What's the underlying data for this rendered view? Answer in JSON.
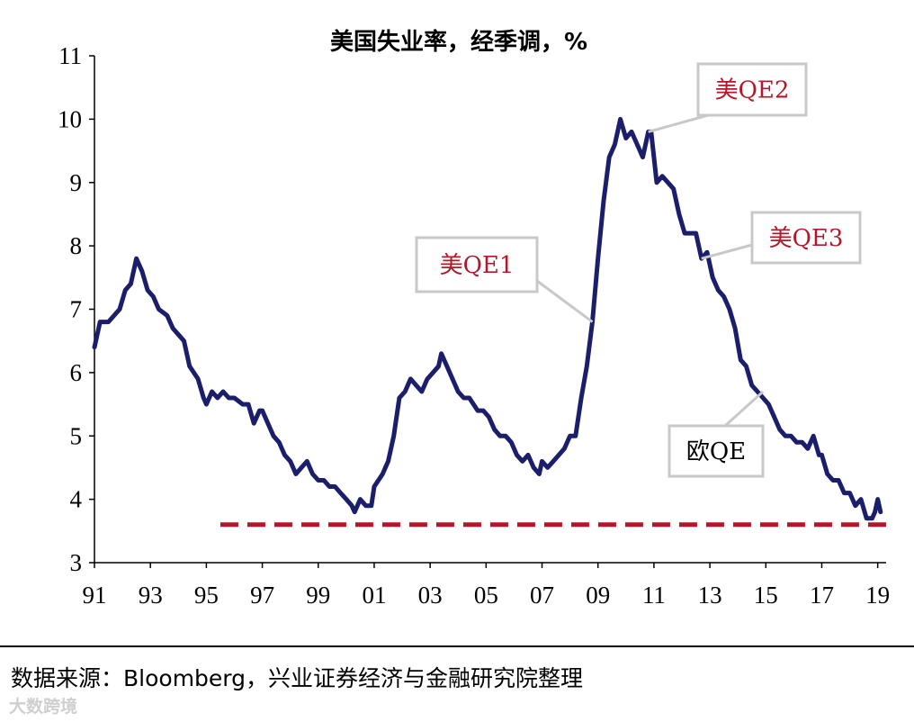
{
  "chart_data": {
    "type": "line",
    "title": "美国失业率，经季调，%",
    "xlabel": "",
    "ylabel": "",
    "xlim": [
      1991.0,
      2019.3
    ],
    "ylim": [
      3,
      11
    ],
    "y_ticks": [
      "3",
      "4",
      "5",
      "6",
      "7",
      "8",
      "9",
      "10",
      "11"
    ],
    "x_ticks": [
      {
        "label": "91",
        "value": 1991
      },
      {
        "label": "93",
        "value": 1993
      },
      {
        "label": "95",
        "value": 1995
      },
      {
        "label": "97",
        "value": 1997
      },
      {
        "label": "99",
        "value": 1999
      },
      {
        "label": "01",
        "value": 2001
      },
      {
        "label": "03",
        "value": 2003
      },
      {
        "label": "05",
        "value": 2005
      },
      {
        "label": "07",
        "value": 2007
      },
      {
        "label": "09",
        "value": 2009
      },
      {
        "label": "11",
        "value": 2011
      },
      {
        "label": "13",
        "value": 2013
      },
      {
        "label": "15",
        "value": 2015
      },
      {
        "label": "17",
        "value": 2017
      },
      {
        "label": "19",
        "value": 2019
      }
    ],
    "series": [
      {
        "color": "#1b1f6b",
        "points": [
          [
            1991.0,
            6.4
          ],
          [
            1991.2,
            6.8
          ],
          [
            1991.5,
            6.8
          ],
          [
            1991.7,
            6.9
          ],
          [
            1991.9,
            7.0
          ],
          [
            1992.1,
            7.3
          ],
          [
            1992.3,
            7.4
          ],
          [
            1992.5,
            7.8
          ],
          [
            1992.7,
            7.6
          ],
          [
            1992.9,
            7.3
          ],
          [
            1993.1,
            7.2
          ],
          [
            1993.3,
            7.0
          ],
          [
            1993.6,
            6.9
          ],
          [
            1993.8,
            6.7
          ],
          [
            1994.0,
            6.6
          ],
          [
            1994.2,
            6.5
          ],
          [
            1994.4,
            6.1
          ],
          [
            1994.7,
            5.9
          ],
          [
            1994.9,
            5.6
          ],
          [
            1995.0,
            5.5
          ],
          [
            1995.2,
            5.7
          ],
          [
            1995.4,
            5.6
          ],
          [
            1995.6,
            5.7
          ],
          [
            1995.8,
            5.6
          ],
          [
            1996.0,
            5.6
          ],
          [
            1996.3,
            5.5
          ],
          [
            1996.5,
            5.5
          ],
          [
            1996.7,
            5.2
          ],
          [
            1996.9,
            5.4
          ],
          [
            1997.0,
            5.4
          ],
          [
            1997.2,
            5.2
          ],
          [
            1997.4,
            5.0
          ],
          [
            1997.6,
            4.9
          ],
          [
            1997.8,
            4.7
          ],
          [
            1998.0,
            4.6
          ],
          [
            1998.2,
            4.4
          ],
          [
            1998.4,
            4.5
          ],
          [
            1998.6,
            4.6
          ],
          [
            1998.8,
            4.4
          ],
          [
            1999.0,
            4.3
          ],
          [
            1999.2,
            4.3
          ],
          [
            1999.4,
            4.2
          ],
          [
            1999.6,
            4.2
          ],
          [
            1999.8,
            4.1
          ],
          [
            2000.0,
            4.0
          ],
          [
            2000.2,
            3.9
          ],
          [
            2000.3,
            3.8
          ],
          [
            2000.5,
            4.0
          ],
          [
            2000.7,
            3.9
          ],
          [
            2000.9,
            3.9
          ],
          [
            2001.0,
            4.2
          ],
          [
            2001.3,
            4.4
          ],
          [
            2001.5,
            4.6
          ],
          [
            2001.7,
            5.0
          ],
          [
            2001.9,
            5.6
          ],
          [
            2002.1,
            5.7
          ],
          [
            2002.3,
            5.9
          ],
          [
            2002.5,
            5.8
          ],
          [
            2002.7,
            5.7
          ],
          [
            2002.9,
            5.9
          ],
          [
            2003.1,
            6.0
          ],
          [
            2003.3,
            6.1
          ],
          [
            2003.4,
            6.3
          ],
          [
            2003.6,
            6.1
          ],
          [
            2003.8,
            5.9
          ],
          [
            2004.0,
            5.7
          ],
          [
            2004.2,
            5.6
          ],
          [
            2004.4,
            5.6
          ],
          [
            2004.7,
            5.4
          ],
          [
            2004.9,
            5.4
          ],
          [
            2005.1,
            5.3
          ],
          [
            2005.3,
            5.1
          ],
          [
            2005.5,
            5.0
          ],
          [
            2005.7,
            5.0
          ],
          [
            2005.9,
            4.9
          ],
          [
            2006.1,
            4.7
          ],
          [
            2006.3,
            4.6
          ],
          [
            2006.5,
            4.7
          ],
          [
            2006.7,
            4.5
          ],
          [
            2006.9,
            4.4
          ],
          [
            2007.0,
            4.6
          ],
          [
            2007.2,
            4.5
          ],
          [
            2007.4,
            4.6
          ],
          [
            2007.6,
            4.7
          ],
          [
            2007.8,
            4.8
          ],
          [
            2008.0,
            5.0
          ],
          [
            2008.2,
            5.0
          ],
          [
            2008.4,
            5.6
          ],
          [
            2008.6,
            6.1
          ],
          [
            2008.8,
            6.8
          ],
          [
            2009.0,
            7.8
          ],
          [
            2009.2,
            8.7
          ],
          [
            2009.4,
            9.4
          ],
          [
            2009.6,
            9.6
          ],
          [
            2009.8,
            10.0
          ],
          [
            2010.0,
            9.7
          ],
          [
            2010.2,
            9.8
          ],
          [
            2010.4,
            9.6
          ],
          [
            2010.6,
            9.4
          ],
          [
            2010.8,
            9.8
          ],
          [
            2010.9,
            9.8
          ],
          [
            2011.1,
            9.0
          ],
          [
            2011.3,
            9.1
          ],
          [
            2011.5,
            9.0
          ],
          [
            2011.7,
            8.9
          ],
          [
            2011.9,
            8.5
          ],
          [
            2012.1,
            8.2
          ],
          [
            2012.3,
            8.2
          ],
          [
            2012.5,
            8.2
          ],
          [
            2012.7,
            7.8
          ],
          [
            2012.9,
            7.9
          ],
          [
            2013.1,
            7.5
          ],
          [
            2013.3,
            7.3
          ],
          [
            2013.5,
            7.2
          ],
          [
            2013.7,
            7.0
          ],
          [
            2013.9,
            6.7
          ],
          [
            2014.1,
            6.2
          ],
          [
            2014.3,
            6.1
          ],
          [
            2014.5,
            5.8
          ],
          [
            2014.7,
            5.7
          ],
          [
            2014.9,
            5.6
          ],
          [
            2015.1,
            5.5
          ],
          [
            2015.3,
            5.3
          ],
          [
            2015.5,
            5.1
          ],
          [
            2015.7,
            5.0
          ],
          [
            2015.9,
            5.0
          ],
          [
            2016.1,
            4.9
          ],
          [
            2016.3,
            4.9
          ],
          [
            2016.5,
            4.8
          ],
          [
            2016.7,
            5.0
          ],
          [
            2016.9,
            4.7
          ],
          [
            2017.0,
            4.7
          ],
          [
            2017.2,
            4.4
          ],
          [
            2017.4,
            4.3
          ],
          [
            2017.6,
            4.3
          ],
          [
            2017.8,
            4.1
          ],
          [
            2018.0,
            4.1
          ],
          [
            2018.2,
            3.9
          ],
          [
            2018.4,
            4.0
          ],
          [
            2018.6,
            3.7
          ],
          [
            2018.8,
            3.7
          ],
          [
            2018.9,
            3.8
          ],
          [
            2019.0,
            4.0
          ],
          [
            2019.1,
            3.8
          ]
        ]
      }
    ],
    "reference_line": {
      "y": 3.6,
      "x_start": 1995.5,
      "x_end": 2019.3,
      "color": "#b5172a",
      "style": "dashed"
    },
    "annotations": [
      {
        "label": "美QE1",
        "x": 2008.8,
        "y": 6.8,
        "color": "#b5172a"
      },
      {
        "label": "美QE2",
        "x": 2010.8,
        "y": 9.8,
        "color": "#b5172a"
      },
      {
        "label": "美QE3",
        "x": 2012.7,
        "y": 7.8,
        "color": "#b5172a"
      },
      {
        "label": "欧QE",
        "x": 2014.9,
        "y": 5.7,
        "color": "#000000"
      }
    ],
    "grid": false,
    "legend": "none"
  },
  "footer": {
    "source": "数据来源：Bloomberg，兴业证券经济与金融研究院整理",
    "watermark": "大数跨境"
  }
}
